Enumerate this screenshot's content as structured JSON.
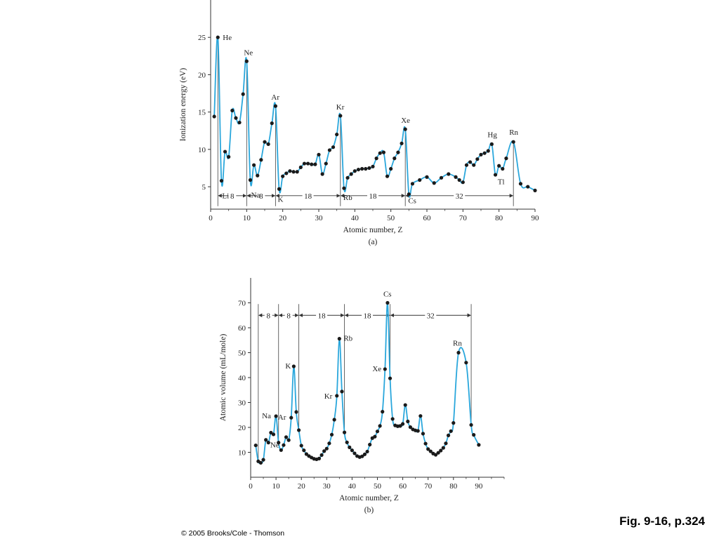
{
  "caption": "Fig. 9-16, p.324",
  "copyright": "© 2005 Brooks/Cole - Thomson",
  "colors": {
    "curve": "#2aa7dc",
    "point": "#1a1a1a",
    "axis": "#333333"
  },
  "chart_data": [
    {
      "type": "line",
      "panel_label": "(a)",
      "xlabel": "Atomic number, Z",
      "ylabel": "Ionization energy (eV)",
      "xlim": [
        0,
        90
      ],
      "ylim": [
        2,
        30
      ],
      "xticks": [
        0,
        10,
        20,
        30,
        40,
        50,
        60,
        70,
        80,
        90
      ],
      "yticks": [
        5,
        10,
        15,
        20,
        25
      ],
      "points": [
        [
          1,
          14.4
        ],
        [
          2,
          25.0
        ],
        [
          3,
          5.8
        ],
        [
          4,
          9.7
        ],
        [
          5,
          9.0
        ],
        [
          6,
          15.2
        ],
        [
          7,
          14.2
        ],
        [
          8,
          13.6
        ],
        [
          9,
          17.4
        ],
        [
          10,
          21.8
        ],
        [
          11,
          5.9
        ],
        [
          12,
          7.9
        ],
        [
          13,
          6.5
        ],
        [
          14,
          8.6
        ],
        [
          15,
          11.0
        ],
        [
          16,
          10.7
        ],
        [
          17,
          13.5
        ],
        [
          18,
          15.8
        ],
        [
          19,
          4.7
        ],
        [
          20,
          6.4
        ],
        [
          21,
          6.8
        ],
        [
          22,
          7.1
        ],
        [
          23,
          7.0
        ],
        [
          24,
          7.0
        ],
        [
          25,
          7.6
        ],
        [
          26,
          8.1
        ],
        [
          27,
          8.1
        ],
        [
          28,
          8.0
        ],
        [
          29,
          8.0
        ],
        [
          30,
          9.3
        ],
        [
          31,
          6.7
        ],
        [
          32,
          8.1
        ],
        [
          33,
          9.9
        ],
        [
          34,
          10.3
        ],
        [
          35,
          12.0
        ],
        [
          36,
          14.5
        ],
        [
          37,
          4.8
        ],
        [
          38,
          6.2
        ],
        [
          39,
          6.7
        ],
        [
          40,
          7.1
        ],
        [
          41,
          7.3
        ],
        [
          42,
          7.4
        ],
        [
          43,
          7.4
        ],
        [
          44,
          7.5
        ],
        [
          45,
          7.7
        ],
        [
          46,
          8.8
        ],
        [
          47,
          9.5
        ],
        [
          48,
          9.6
        ],
        [
          49,
          6.4
        ],
        [
          50,
          7.4
        ],
        [
          51,
          8.8
        ],
        [
          52,
          9.6
        ],
        [
          53,
          10.8
        ],
        [
          54,
          12.7
        ],
        [
          55,
          4.0
        ],
        [
          56,
          5.4
        ],
        [
          58,
          5.9
        ],
        [
          60,
          6.3
        ],
        [
          62,
          5.5
        ],
        [
          64,
          6.2
        ],
        [
          66,
          6.7
        ],
        [
          68,
          6.3
        ],
        [
          69,
          5.9
        ],
        [
          70,
          5.6
        ],
        [
          71,
          7.9
        ],
        [
          72,
          8.3
        ],
        [
          73,
          7.9
        ],
        [
          74,
          8.7
        ],
        [
          75,
          9.3
        ],
        [
          76,
          9.5
        ],
        [
          77,
          9.8
        ],
        [
          78,
          10.7
        ],
        [
          79,
          6.6
        ],
        [
          80,
          7.8
        ],
        [
          81,
          7.4
        ],
        [
          82,
          8.8
        ],
        [
          84,
          11.0
        ],
        [
          86,
          5.4
        ],
        [
          88,
          5.0
        ],
        [
          90,
          4.5
        ]
      ],
      "annotations": [
        {
          "text": "He",
          "z": 2,
          "v": 25.0,
          "dx": 7,
          "dy": 4
        },
        {
          "text": "Ne",
          "z": 10,
          "v": 21.8,
          "dx": -4,
          "dy": -9
        },
        {
          "text": "Ar",
          "z": 18,
          "v": 15.8,
          "dx": -6,
          "dy": -9
        },
        {
          "text": "Kr",
          "z": 36,
          "v": 14.5,
          "dx": -6,
          "dy": -9
        },
        {
          "text": "Xe",
          "z": 54,
          "v": 12.7,
          "dx": -6,
          "dy": -9
        },
        {
          "text": "Hg",
          "z": 78,
          "v": 10.7,
          "dx": -6,
          "dy": -10
        },
        {
          "text": "Rn",
          "z": 84,
          "v": 11.0,
          "dx": -6,
          "dy": -10
        },
        {
          "text": "Li",
          "z": 3,
          "v": 5.8,
          "dx": 1,
          "dy": 25
        },
        {
          "text": "Na",
          "z": 11,
          "v": 5.9,
          "dx": 1,
          "dy": 25
        },
        {
          "text": "K",
          "z": 19,
          "v": 4.7,
          "dx": -2,
          "dy": 18
        },
        {
          "text": "Rb",
          "z": 37,
          "v": 4.8,
          "dx": -1,
          "dy": 17
        },
        {
          "text": "Cs",
          "z": 55,
          "v": 4.0,
          "dx": -1,
          "dy": 13
        },
        {
          "text": "Tl",
          "z": 81,
          "v": 7.4,
          "dx": -7,
          "dy": 22
        }
      ],
      "period_markers": [
        2,
        10,
        18,
        36,
        54,
        84
      ],
      "period_marker_floor": 2.4,
      "bracket_y": 3.8,
      "brackets": [
        {
          "from": 2,
          "to": 10,
          "label": "8"
        },
        {
          "from": 10,
          "to": 18,
          "label": "8"
        },
        {
          "from": 18,
          "to": 36,
          "label": "18"
        },
        {
          "from": 36,
          "to": 54,
          "label": "18"
        },
        {
          "from": 54,
          "to": 84,
          "label": "32"
        }
      ]
    },
    {
      "type": "line",
      "panel_label": "(b)",
      "xlabel": "Atomic number, Z",
      "ylabel": "Atomic volume (mL/mole)",
      "xlim": [
        0,
        100
      ],
      "ylim": [
        0,
        80
      ],
      "xticks": [
        0,
        10,
        20,
        30,
        40,
        50,
        60,
        70,
        80,
        90
      ],
      "yticks": [
        10,
        20,
        30,
        40,
        50,
        60,
        70
      ],
      "points": [
        [
          2,
          12.8
        ],
        [
          3,
          6.4
        ],
        [
          4,
          5.8
        ],
        [
          5,
          7.0
        ],
        [
          6,
          15.0
        ],
        [
          7,
          13.9
        ],
        [
          8,
          17.9
        ],
        [
          9,
          17.2
        ],
        [
          10,
          24.5
        ],
        [
          11,
          13.9
        ],
        [
          12,
          10.9
        ],
        [
          13,
          12.9
        ],
        [
          14,
          16.1
        ],
        [
          15,
          14.9
        ],
        [
          16,
          23.9
        ],
        [
          17,
          44.5
        ],
        [
          18,
          26.2
        ],
        [
          19,
          18.9
        ],
        [
          20,
          12.7
        ],
        [
          21,
          10.8
        ],
        [
          22,
          9.3
        ],
        [
          23,
          8.5
        ],
        [
          24,
          7.9
        ],
        [
          25,
          7.4
        ],
        [
          26,
          7.2
        ],
        [
          27,
          7.5
        ],
        [
          28,
          8.9
        ],
        [
          29,
          10.5
        ],
        [
          30,
          11.5
        ],
        [
          31,
          13.6
        ],
        [
          32,
          17.1
        ],
        [
          33,
          23.1
        ],
        [
          34,
          32.7
        ],
        [
          35,
          55.6
        ],
        [
          36,
          34.4
        ],
        [
          37,
          18.0
        ],
        [
          38,
          14.0
        ],
        [
          39,
          12.0
        ],
        [
          40,
          10.8
        ],
        [
          41,
          9.6
        ],
        [
          42,
          8.5
        ],
        [
          43,
          8.1
        ],
        [
          44,
          8.4
        ],
        [
          45,
          9.2
        ],
        [
          46,
          10.3
        ],
        [
          47,
          13.1
        ],
        [
          48,
          15.7
        ],
        [
          49,
          16.3
        ],
        [
          50,
          18.4
        ],
        [
          51,
          20.6
        ],
        [
          52,
          26.3
        ],
        [
          53,
          43.4
        ],
        [
          54,
          70.0
        ],
        [
          55,
          39.7
        ],
        [
          56,
          23.4
        ],
        [
          57,
          20.8
        ],
        [
          58,
          20.5
        ],
        [
          59,
          20.6
        ],
        [
          60,
          21.4
        ],
        [
          61,
          29.0
        ],
        [
          62,
          22.4
        ],
        [
          63,
          20.1
        ],
        [
          64,
          19.2
        ],
        [
          65,
          18.8
        ],
        [
          66,
          18.6
        ],
        [
          67,
          24.6
        ],
        [
          68,
          17.5
        ],
        [
          69,
          13.5
        ],
        [
          70,
          11.3
        ],
        [
          71,
          10.4
        ],
        [
          72,
          9.5
        ],
        [
          73,
          9.0
        ],
        [
          74,
          9.8
        ],
        [
          75,
          10.7
        ],
        [
          76,
          11.8
        ],
        [
          77,
          13.6
        ],
        [
          78,
          16.8
        ],
        [
          79,
          18.5
        ],
        [
          80,
          21.8
        ],
        [
          82,
          50.0
        ],
        [
          85,
          46.0
        ],
        [
          87,
          21.0
        ],
        [
          88,
          17.0
        ],
        [
          90,
          13.0
        ]
      ],
      "annotations": [
        {
          "text": "Na",
          "z": 10,
          "v": 24.5,
          "dx": -20,
          "dy": 3
        },
        {
          "text": "Ne",
          "z": 8,
          "v": 17.9,
          "dx": -1,
          "dy": 21
        },
        {
          "text": "Ar",
          "z": 16,
          "v": 23.9,
          "dx": -19,
          "dy": 3
        },
        {
          "text": "K",
          "z": 17,
          "v": 44.5,
          "dx": -12,
          "dy": 3
        },
        {
          "text": "Kr",
          "z": 34,
          "v": 32.7,
          "dx": -18,
          "dy": 4
        },
        {
          "text": "Rb",
          "z": 35,
          "v": 55.6,
          "dx": 6,
          "dy": 3
        },
        {
          "text": "Xe",
          "z": 53,
          "v": 43.4,
          "dx": -18,
          "dy": 3
        },
        {
          "text": "Cs",
          "z": 54,
          "v": 70.0,
          "dx": -6,
          "dy": -9
        },
        {
          "text": "Rn",
          "z": 82,
          "v": 50.0,
          "dx": -8,
          "dy": -10
        }
      ],
      "period_markers": [
        3,
        11,
        19,
        37,
        55,
        87
      ],
      "period_marker_top": 69.5,
      "period_marker_floors": [
        6.4,
        13.9,
        18.9,
        18.0,
        39.7,
        21.0
      ],
      "bracket_y": 65,
      "brackets": [
        {
          "from": 3,
          "to": 11,
          "label": "8"
        },
        {
          "from": 11,
          "to": 19,
          "label": "8"
        },
        {
          "from": 19,
          "to": 37,
          "label": "18"
        },
        {
          "from": 37,
          "to": 55,
          "label": "18"
        },
        {
          "from": 55,
          "to": 87,
          "label": "32"
        }
      ]
    }
  ]
}
